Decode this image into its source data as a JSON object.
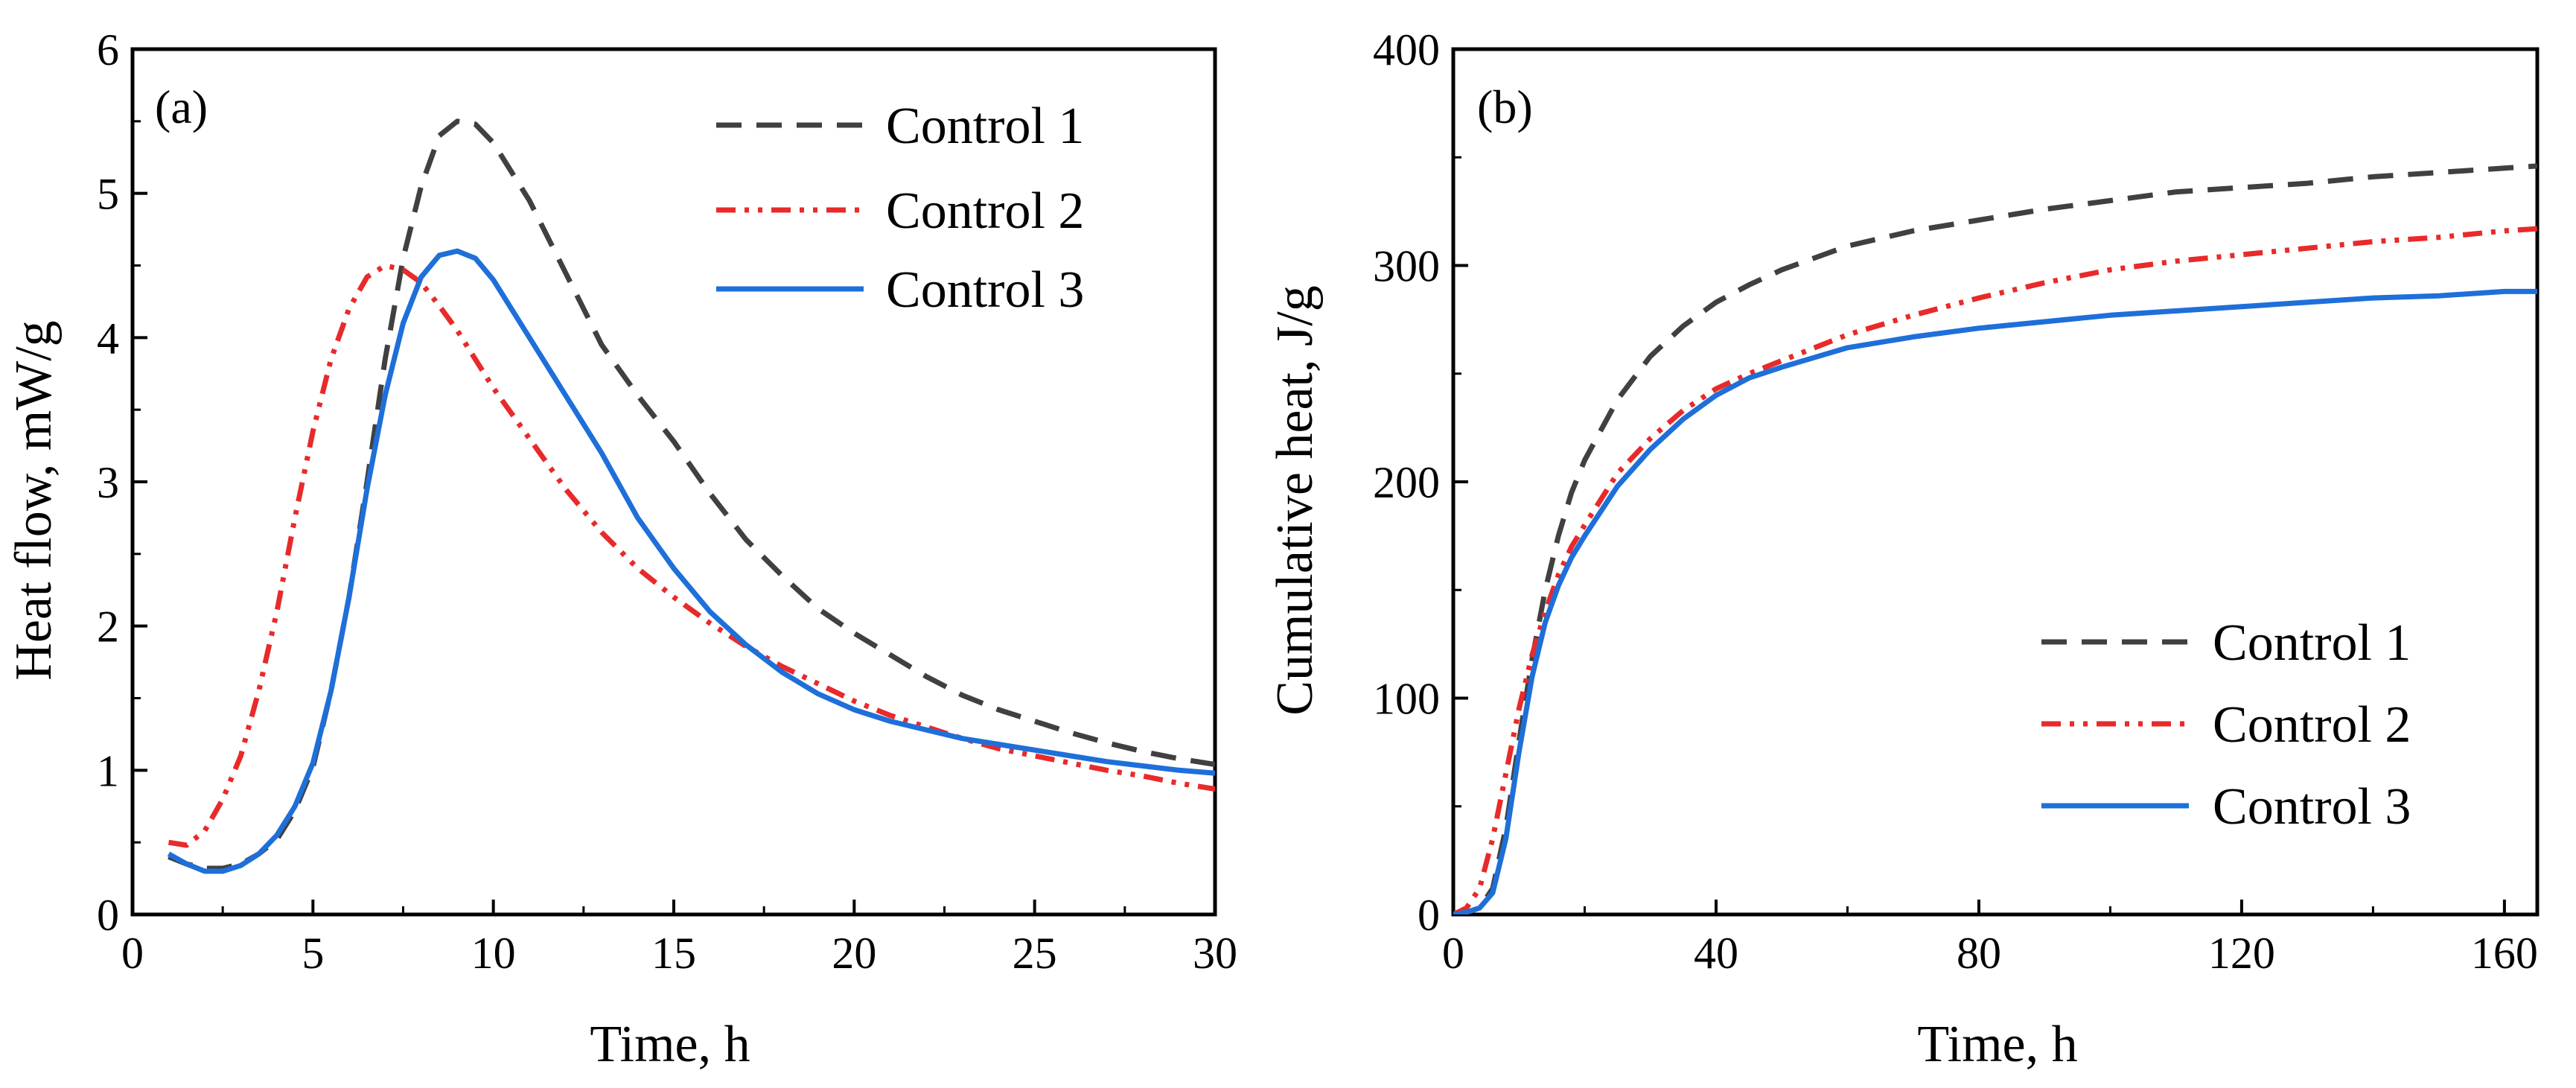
{
  "chart_data": [
    {
      "type": "line",
      "panel_label": "(a)",
      "xlabel": "Time, h",
      "ylabel": "Heat flow, mW/g",
      "xlim": [
        0,
        30
      ],
      "ylim": [
        0,
        6
      ],
      "xticks": [
        0,
        5,
        10,
        15,
        20,
        25,
        30
      ],
      "yticks": [
        0,
        1,
        2,
        3,
        4,
        5,
        6
      ],
      "xtick_labels": [
        "0",
        "5",
        "10",
        "15",
        "20",
        "25",
        "30"
      ],
      "ytick_labels": [
        "0",
        "1",
        "2",
        "3",
        "4",
        "5",
        "6"
      ],
      "legend_position": "top-right",
      "series": [
        {
          "name": "Control 1",
          "color": "#404040",
          "dash": "dash",
          "x": [
            1,
            1.5,
            2,
            2.5,
            3,
            3.5,
            4,
            4.5,
            5,
            5.5,
            6,
            6.5,
            7,
            7.5,
            8,
            8.5,
            9,
            9.5,
            10,
            10.5,
            11,
            12,
            13,
            14,
            15,
            16,
            17,
            18,
            19,
            20,
            21,
            22,
            23,
            24,
            25,
            26,
            27,
            28,
            29,
            30
          ],
          "y": [
            0.4,
            0.35,
            0.32,
            0.32,
            0.35,
            0.42,
            0.52,
            0.72,
            1.02,
            1.55,
            2.2,
            3.0,
            3.85,
            4.55,
            5.05,
            5.4,
            5.5,
            5.48,
            5.35,
            5.15,
            4.95,
            4.45,
            3.95,
            3.6,
            3.28,
            2.92,
            2.6,
            2.35,
            2.12,
            1.95,
            1.8,
            1.65,
            1.52,
            1.42,
            1.34,
            1.26,
            1.19,
            1.13,
            1.08,
            1.04
          ]
        },
        {
          "name": "Control 2",
          "color": "#e82a2a",
          "dash": "dash-dot-dot",
          "x": [
            1,
            1.5,
            2,
            2.5,
            3,
            3.5,
            4,
            4.5,
            5,
            5.5,
            6,
            6.5,
            7,
            7.5,
            8,
            8.5,
            9,
            9.5,
            10,
            11,
            12,
            13,
            14,
            15,
            16,
            17,
            18,
            19,
            20,
            21,
            22,
            23,
            24,
            25,
            26,
            27,
            28,
            29,
            30
          ],
          "y": [
            0.5,
            0.48,
            0.58,
            0.8,
            1.1,
            1.55,
            2.1,
            2.75,
            3.35,
            3.85,
            4.2,
            4.42,
            4.5,
            4.47,
            4.38,
            4.22,
            4.05,
            3.85,
            3.65,
            3.3,
            2.95,
            2.65,
            2.4,
            2.2,
            2.02,
            1.86,
            1.72,
            1.6,
            1.48,
            1.38,
            1.3,
            1.22,
            1.15,
            1.1,
            1.05,
            1.0,
            0.96,
            0.91,
            0.87
          ]
        },
        {
          "name": "Control 3",
          "color": "#1e6fd9",
          "dash": "solid",
          "x": [
            1,
            1.5,
            2,
            2.5,
            3,
            3.5,
            4,
            4.5,
            5,
            5.5,
            6,
            6.5,
            7,
            7.5,
            8,
            8.5,
            9,
            9.5,
            10,
            10.5,
            11,
            12,
            13,
            14,
            15,
            16,
            17,
            18,
            19,
            20,
            21,
            22,
            23,
            24,
            25,
            26,
            27,
            28,
            29,
            30
          ],
          "y": [
            0.42,
            0.35,
            0.3,
            0.3,
            0.34,
            0.42,
            0.55,
            0.75,
            1.05,
            1.55,
            2.2,
            2.95,
            3.6,
            4.1,
            4.42,
            4.57,
            4.6,
            4.55,
            4.4,
            4.2,
            4.0,
            3.6,
            3.2,
            2.75,
            2.4,
            2.1,
            1.87,
            1.68,
            1.53,
            1.42,
            1.34,
            1.28,
            1.22,
            1.18,
            1.14,
            1.1,
            1.06,
            1.03,
            1.0,
            0.98
          ]
        }
      ]
    },
    {
      "type": "line",
      "panel_label": "(b)",
      "xlabel": "Time, h",
      "ylabel": "Cumulative heat, J/g",
      "xlim": [
        0,
        165
      ],
      "ylim": [
        0,
        400
      ],
      "xticks": [
        0,
        40,
        80,
        120,
        160
      ],
      "yticks": [
        0,
        100,
        200,
        300,
        400
      ],
      "xtick_labels": [
        "0",
        "40",
        "80",
        "120",
        "160"
      ],
      "ytick_labels": [
        "0",
        "100",
        "200",
        "300",
        "400"
      ],
      "legend_position": "bottom-right",
      "series": [
        {
          "name": "Control 1",
          "color": "#404040",
          "dash": "dash",
          "x": [
            0,
            2,
            4,
            6,
            8,
            10,
            12,
            14,
            16,
            18,
            20,
            25,
            30,
            35,
            40,
            45,
            50,
            60,
            70,
            80,
            90,
            100,
            110,
            120,
            130,
            140,
            150,
            160,
            165
          ],
          "y": [
            0,
            1,
            3,
            12,
            40,
            80,
            118,
            150,
            175,
            195,
            210,
            238,
            258,
            272,
            283,
            291,
            298,
            309,
            316,
            321,
            326,
            330,
            334,
            336,
            338,
            341,
            343,
            345,
            346
          ]
        },
        {
          "name": "Control 2",
          "color": "#e82a2a",
          "dash": "dash-dot-dot",
          "x": [
            0,
            2,
            4,
            6,
            8,
            10,
            12,
            14,
            16,
            18,
            20,
            25,
            30,
            35,
            40,
            45,
            50,
            60,
            70,
            80,
            90,
            100,
            110,
            120,
            130,
            140,
            150,
            160,
            165
          ],
          "y": [
            0,
            3,
            12,
            35,
            65,
            95,
            120,
            140,
            157,
            170,
            180,
            204,
            220,
            233,
            243,
            250,
            256,
            268,
            277,
            285,
            292,
            298,
            302,
            305,
            308,
            311,
            313,
            316,
            317
          ]
        },
        {
          "name": "Control 3",
          "color": "#1e6fd9",
          "dash": "solid",
          "x": [
            0,
            2,
            4,
            6,
            8,
            10,
            12,
            14,
            16,
            18,
            20,
            25,
            30,
            35,
            40,
            45,
            50,
            60,
            70,
            80,
            90,
            100,
            110,
            120,
            130,
            140,
            150,
            160,
            165
          ],
          "y": [
            0,
            1,
            3,
            10,
            35,
            75,
            110,
            135,
            152,
            165,
            175,
            198,
            215,
            229,
            240,
            248,
            253,
            262,
            267,
            271,
            274,
            277,
            279,
            281,
            283,
            285,
            286,
            288,
            288
          ]
        }
      ]
    }
  ]
}
